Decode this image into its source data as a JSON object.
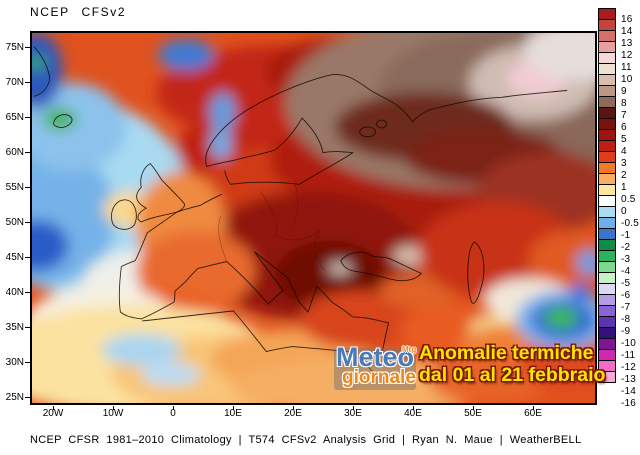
{
  "title": "NCEP CFSv2",
  "footer": "NCEP CFSR 1981–2010 Climatology | T574 CFSv2 Analysis Grid | Ryan N. Maue | WeatherBELL",
  "map": {
    "lat_labels": [
      "75N",
      "70N",
      "65N",
      "60N",
      "55N",
      "50N",
      "45N",
      "40N",
      "35N",
      "30N",
      "25N"
    ],
    "lon_labels": [
      "20W",
      "10W",
      "0",
      "10E",
      "20E",
      "30E",
      "40E",
      "50E",
      "60E"
    ]
  },
  "colorbar": {
    "labels": [
      "16",
      "14",
      "13",
      "12",
      "11",
      "10",
      "9",
      "8",
      "7",
      "6",
      "5",
      "4",
      "3",
      "2",
      "1",
      "0.5",
      "0",
      "-0.5",
      "-1",
      "-2",
      "-3",
      "-4",
      "-5",
      "-6",
      "-7",
      "-8",
      "-9",
      "-10",
      "-11",
      "-12",
      "-13",
      "-14",
      "-16"
    ],
    "colors": [
      "#a81b20",
      "#c0453e",
      "#d4716b",
      "#e9a09c",
      "#f6d8d6",
      "#eee0d2",
      "#d9bcaa",
      "#bc9884",
      "#8e6a5a",
      "#591511",
      "#7c100c",
      "#a01410",
      "#c01e14",
      "#e03c1c",
      "#f47a28",
      "#fcae60",
      "#fee79e",
      "#ffffff",
      "#aadcf2",
      "#6cb2e8",
      "#3c74cc",
      "#0c8c44",
      "#2cb45c",
      "#7cd88c",
      "#c6f2c8",
      "#ded8f4",
      "#b49ce6",
      "#8a64d4",
      "#5c34b2",
      "#34107a",
      "#7c1694",
      "#cc28b0",
      "#f26cc8",
      "#f9a8dc"
    ]
  },
  "watermark": {
    "logo_line1": "Meteo",
    "logo_line2": "giornale",
    "logo_mark": "Mtg",
    "caption_line1": "Anomalie termiche",
    "caption_line2": "dal 01 al 21 febbraio",
    "caption_color": "#ffe400",
    "logo_blue": "#4a7ab8",
    "logo_orange": "#ee8619"
  }
}
